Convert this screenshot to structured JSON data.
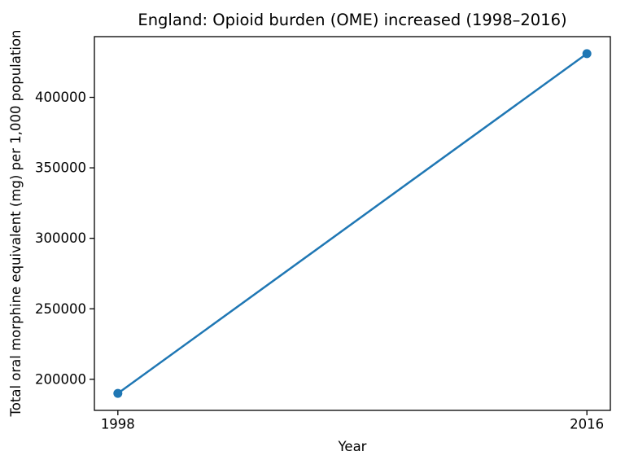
{
  "chart_data": {
    "type": "line",
    "title": "England: Opioid burden (OME) increased (1998–2016)",
    "xlabel": "Year",
    "ylabel": "Total oral morphine equivalent (mg) per 1,000 population",
    "series": [
      {
        "x": [
          1998,
          2016
        ],
        "y": [
          190000,
          431000
        ]
      }
    ],
    "xlim": [
      1997.1,
      2016.9
    ],
    "ylim": [
      177950,
      443050
    ],
    "xticks": {
      "values": [
        1998,
        2016
      ],
      "labels": [
        "1998",
        "2016"
      ]
    },
    "yticks": {
      "values": [
        200000,
        250000,
        300000,
        350000,
        400000
      ],
      "labels": [
        "200000",
        "250000",
        "300000",
        "350000",
        "400000"
      ]
    },
    "grid": false,
    "legend": "none",
    "marker": "circle",
    "colors": {
      "line": "#1f77b4",
      "marker": "#1f77b4",
      "axis": "#000000",
      "text": "#000000",
      "background": "#ffffff"
    }
  }
}
